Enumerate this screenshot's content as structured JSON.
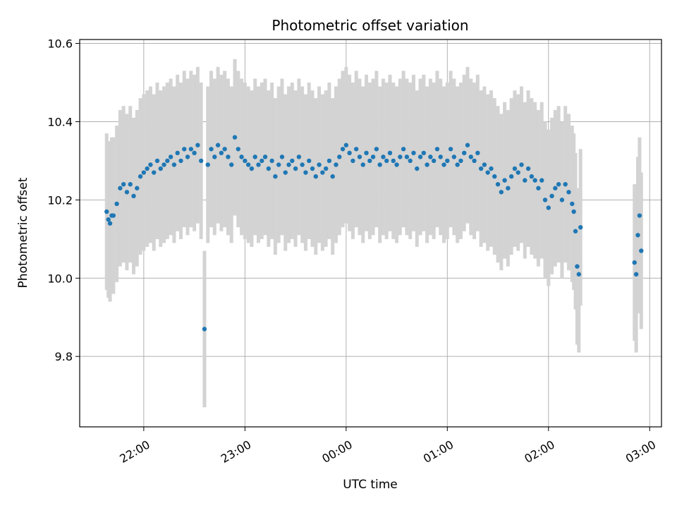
{
  "chart_data": {
    "type": "scatter",
    "title": "Photometric offset variation",
    "xlabel": "UTC time",
    "ylabel": "Photometric offset",
    "grid": true,
    "xlim": [
      "21:22",
      "03:07"
    ],
    "ylim": [
      9.62,
      10.61
    ],
    "x_ticks": [
      "22:00",
      "23:00",
      "00:00",
      "01:00",
      "02:00",
      "03:00"
    ],
    "y_ticks": [
      9.8,
      10.0,
      10.2,
      10.4,
      10.6
    ],
    "colors": {
      "points": "#1f77b4",
      "error_bars": "#d3d3d3"
    },
    "series": [
      {
        "error_bar": 0.2,
        "points": [
          [
            "21:38",
            10.17
          ],
          [
            "21:39",
            10.15
          ],
          [
            "21:40",
            10.14
          ],
          [
            "21:41",
            10.16
          ],
          [
            "21:42",
            10.16
          ],
          [
            "21:44",
            10.19
          ],
          [
            "21:46",
            10.23
          ],
          [
            "21:48",
            10.24
          ],
          [
            "21:50",
            10.22
          ],
          [
            "21:52",
            10.24
          ],
          [
            "21:54",
            10.21
          ],
          [
            "21:56",
            10.23
          ],
          [
            "21:58",
            10.26
          ],
          [
            "22:00",
            10.27
          ],
          [
            "22:02",
            10.28
          ],
          [
            "22:04",
            10.29
          ],
          [
            "22:06",
            10.27
          ],
          [
            "22:08",
            10.3
          ],
          [
            "22:10",
            10.28
          ],
          [
            "22:12",
            10.29
          ],
          [
            "22:14",
            10.3
          ],
          [
            "22:16",
            10.31
          ],
          [
            "22:18",
            10.29
          ],
          [
            "22:20",
            10.32
          ],
          [
            "22:22",
            10.3
          ],
          [
            "22:24",
            10.33
          ],
          [
            "22:26",
            10.31
          ],
          [
            "22:28",
            10.33
          ],
          [
            "22:30",
            10.32
          ],
          [
            "22:32",
            10.34
          ],
          [
            "22:34",
            10.3
          ],
          [
            "22:36",
            9.87
          ],
          [
            "22:38",
            10.29
          ],
          [
            "22:40",
            10.33
          ],
          [
            "22:42",
            10.31
          ],
          [
            "22:44",
            10.34
          ],
          [
            "22:46",
            10.32
          ],
          [
            "22:48",
            10.33
          ],
          [
            "22:50",
            10.31
          ],
          [
            "22:52",
            10.29
          ],
          [
            "22:54",
            10.36
          ],
          [
            "22:56",
            10.33
          ],
          [
            "22:58",
            10.31
          ],
          [
            "23:00",
            10.3
          ],
          [
            "23:02",
            10.29
          ],
          [
            "23:04",
            10.28
          ],
          [
            "23:06",
            10.31
          ],
          [
            "23:08",
            10.29
          ],
          [
            "23:10",
            10.3
          ],
          [
            "23:12",
            10.31
          ],
          [
            "23:14",
            10.28
          ],
          [
            "23:16",
            10.3
          ],
          [
            "23:18",
            10.26
          ],
          [
            "23:20",
            10.29
          ],
          [
            "23:22",
            10.31
          ],
          [
            "23:24",
            10.27
          ],
          [
            "23:26",
            10.29
          ],
          [
            "23:28",
            10.3
          ],
          [
            "23:30",
            10.28
          ],
          [
            "23:32",
            10.31
          ],
          [
            "23:34",
            10.29
          ],
          [
            "23:36",
            10.27
          ],
          [
            "23:38",
            10.3
          ],
          [
            "23:40",
            10.28
          ],
          [
            "23:42",
            10.26
          ],
          [
            "23:44",
            10.29
          ],
          [
            "23:46",
            10.27
          ],
          [
            "23:48",
            10.28
          ],
          [
            "23:50",
            10.3
          ],
          [
            "23:52",
            10.26
          ],
          [
            "23:54",
            10.29
          ],
          [
            "23:56",
            10.31
          ],
          [
            "23:58",
            10.33
          ],
          [
            "00:00",
            10.34
          ],
          [
            "00:02",
            10.32
          ],
          [
            "00:04",
            10.3
          ],
          [
            "00:06",
            10.33
          ],
          [
            "00:08",
            10.31
          ],
          [
            "00:10",
            10.29
          ],
          [
            "00:12",
            10.32
          ],
          [
            "00:14",
            10.3
          ],
          [
            "00:16",
            10.31
          ],
          [
            "00:18",
            10.33
          ],
          [
            "00:20",
            10.29
          ],
          [
            "00:22",
            10.31
          ],
          [
            "00:24",
            10.3
          ],
          [
            "00:26",
            10.32
          ],
          [
            "00:28",
            10.3
          ],
          [
            "00:30",
            10.29
          ],
          [
            "00:32",
            10.31
          ],
          [
            "00:34",
            10.33
          ],
          [
            "00:36",
            10.31
          ],
          [
            "00:38",
            10.3
          ],
          [
            "00:40",
            10.32
          ],
          [
            "00:42",
            10.28
          ],
          [
            "00:44",
            10.31
          ],
          [
            "00:46",
            10.32
          ],
          [
            "00:48",
            10.29
          ],
          [
            "00:50",
            10.31
          ],
          [
            "00:52",
            10.3
          ],
          [
            "00:54",
            10.33
          ],
          [
            "00:56",
            10.31
          ],
          [
            "00:58",
            10.29
          ],
          [
            "01:00",
            10.3
          ],
          [
            "01:02",
            10.33
          ],
          [
            "01:04",
            10.31
          ],
          [
            "01:06",
            10.29
          ],
          [
            "01:08",
            10.3
          ],
          [
            "01:10",
            10.32
          ],
          [
            "01:12",
            10.34
          ],
          [
            "01:14",
            10.31
          ],
          [
            "01:16",
            10.3
          ],
          [
            "01:18",
            10.32
          ],
          [
            "01:20",
            10.28
          ],
          [
            "01:22",
            10.29
          ],
          [
            "01:24",
            10.27
          ],
          [
            "01:26",
            10.28
          ],
          [
            "01:28",
            10.26
          ],
          [
            "01:30",
            10.24
          ],
          [
            "01:32",
            10.22
          ],
          [
            "01:34",
            10.25
          ],
          [
            "01:36",
            10.23
          ],
          [
            "01:38",
            10.26
          ],
          [
            "01:40",
            10.28
          ],
          [
            "01:42",
            10.27
          ],
          [
            "01:44",
            10.29
          ],
          [
            "01:46",
            10.25
          ],
          [
            "01:48",
            10.28
          ],
          [
            "01:50",
            10.26
          ],
          [
            "01:52",
            10.25
          ],
          [
            "01:54",
            10.23
          ],
          [
            "01:56",
            10.25
          ],
          [
            "01:58",
            10.2
          ],
          [
            "02:00",
            10.18
          ],
          [
            "02:02",
            10.21
          ],
          [
            "02:04",
            10.23
          ],
          [
            "02:06",
            10.24
          ],
          [
            "02:08",
            10.2
          ],
          [
            "02:10",
            10.24
          ],
          [
            "02:12",
            10.22
          ],
          [
            "02:14",
            10.19
          ],
          [
            "02:15",
            10.17
          ],
          [
            "02:16",
            10.12
          ],
          [
            "02:17",
            10.03
          ],
          [
            "02:18",
            10.01
          ],
          [
            "02:19",
            10.13
          ],
          [
            "02:51",
            10.04
          ],
          [
            "02:52",
            10.01
          ],
          [
            "02:53",
            10.11
          ],
          [
            "02:54",
            10.16
          ],
          [
            "02:55",
            10.07
          ]
        ]
      }
    ]
  }
}
